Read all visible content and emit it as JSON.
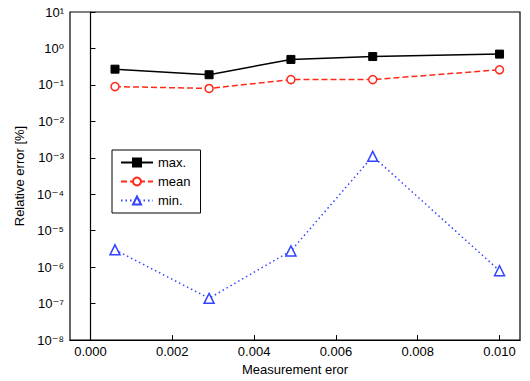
{
  "chart_data": {
    "type": "line",
    "x_label": "Measurement eror",
    "y_label": "Relative error [%]",
    "x": [
      0.0006,
      0.0029,
      0.0049,
      0.0069,
      0.01
    ],
    "series": [
      {
        "name": "max.",
        "color": "#000000",
        "marker": "square",
        "line_style": "solid",
        "values": [
          0.27,
          0.19,
          0.5,
          0.6,
          0.7
        ]
      },
      {
        "name": "mean",
        "color": "#ff2a1a",
        "marker": "circle_open",
        "line_style": "dashed",
        "values": [
          0.09,
          0.08,
          0.14,
          0.14,
          0.26
        ]
      },
      {
        "name": "min.",
        "color": "#3344ff",
        "marker": "triangle_open",
        "line_style": "dotted",
        "values": [
          3e-06,
          1.4e-07,
          2.8e-06,
          0.0011,
          8e-07
        ]
      }
    ],
    "xlim": [
      -0.0005,
      0.0105
    ],
    "xticks": [
      {
        "value": 0,
        "label": "0.000"
      },
      {
        "value": 0.002,
        "label": "0.002"
      },
      {
        "value": 0.004,
        "label": "0.004"
      },
      {
        "value": 0.006,
        "label": "0.006"
      },
      {
        "value": 0.008,
        "label": "0.008"
      },
      {
        "value": 0.01,
        "label": "0.010"
      }
    ],
    "ylim": [
      1e-08,
      10
    ],
    "yticks": [
      {
        "value": 1e-08,
        "label": "10⁻⁸"
      },
      {
        "value": 1e-07,
        "label": "10⁻⁷"
      },
      {
        "value": 1e-06,
        "label": "10⁻⁶"
      },
      {
        "value": 1e-05,
        "label": "10⁻⁵"
      },
      {
        "value": 0.0001,
        "label": "10⁻⁴"
      },
      {
        "value": 0.001,
        "label": "10⁻³"
      },
      {
        "value": 0.01,
        "label": "10⁻²"
      },
      {
        "value": 0.1,
        "label": "10⁻¹"
      },
      {
        "value": 1,
        "label": "10⁰"
      },
      {
        "value": 10,
        "label": "10¹"
      }
    ],
    "log": "y",
    "grid": false,
    "legend": "upper left"
  }
}
